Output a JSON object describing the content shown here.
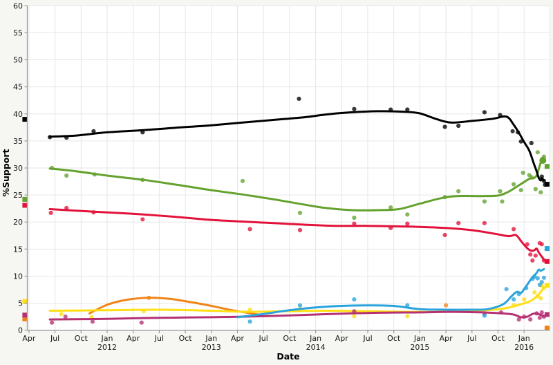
{
  "figure": {
    "background": "#f6f6f3",
    "plot_background": "#ffffff",
    "grid_color": "#e6e6e6",
    "axis_color": "#9b9b9b",
    "tick_color": "#141414"
  },
  "chart_data": {
    "type": "line",
    "title": "",
    "xlabel": "Date",
    "ylabel": "%Support",
    "xlim": [
      2011.2,
      2016.25
    ],
    "ylim": [
      0,
      60
    ],
    "grid": true,
    "legend": "none",
    "y_ticks": [
      0,
      5,
      10,
      15,
      20,
      25,
      30,
      35,
      40,
      45,
      50,
      55,
      60
    ],
    "x_ticks": [
      {
        "t": 2011.25,
        "m": "Apr"
      },
      {
        "t": 2011.5,
        "m": "Jul"
      },
      {
        "t": 2011.75,
        "m": "Oct"
      },
      {
        "t": 2012.0,
        "m": "Jan",
        "y": "2012"
      },
      {
        "t": 2012.25,
        "m": "Apr"
      },
      {
        "t": 2012.5,
        "m": "Jul"
      },
      {
        "t": 2012.75,
        "m": "Oct"
      },
      {
        "t": 2013.0,
        "m": "Jan",
        "y": "2013"
      },
      {
        "t": 2013.25,
        "m": "Apr"
      },
      {
        "t": 2013.5,
        "m": "Jul"
      },
      {
        "t": 2013.75,
        "m": "Oct"
      },
      {
        "t": 2014.0,
        "m": "Jan",
        "y": "2014"
      },
      {
        "t": 2014.25,
        "m": "Apr"
      },
      {
        "t": 2014.5,
        "m": "Jul"
      },
      {
        "t": 2014.75,
        "m": "Oct"
      },
      {
        "t": 2015.0,
        "m": "Jan",
        "y": "2015"
      },
      {
        "t": 2015.25,
        "m": "Apr"
      },
      {
        "t": 2015.5,
        "m": "Jul"
      },
      {
        "t": 2015.75,
        "m": "Oct"
      },
      {
        "t": 2016.0,
        "m": "Jan",
        "y": "2016"
      }
    ],
    "marker_x": {
      "start": 2011.21,
      "end": 2016.22
    },
    "series": [
      {
        "name": "orange",
        "color": "#f08418",
        "start_result": 2.1,
        "end_result": 0.4,
        "trend": [
          [
            2011.83,
            3.1
          ],
          [
            2012.0,
            4.7
          ],
          [
            2012.18,
            5.6
          ],
          [
            2012.4,
            6.0
          ],
          [
            2012.6,
            5.8
          ],
          [
            2012.8,
            5.2
          ],
          [
            2013.0,
            4.5
          ],
          [
            2013.2,
            3.7
          ],
          [
            2013.45,
            2.9
          ]
        ],
        "polls": [
          [
            2012.4,
            6.0
          ],
          [
            2015.25,
            4.6
          ]
        ]
      },
      {
        "name": "yellow",
        "color": "#ffdf12",
        "start_result": 5.3,
        "end_result": 8.3,
        "trend": [
          [
            2011.45,
            3.6
          ],
          [
            2012.0,
            3.7
          ],
          [
            2012.5,
            3.8
          ],
          [
            2013.0,
            3.6
          ],
          [
            2013.35,
            3.4
          ],
          [
            2013.7,
            3.5
          ],
          [
            2014.1,
            3.6
          ],
          [
            2014.5,
            3.5
          ],
          [
            2014.9,
            3.4
          ],
          [
            2015.2,
            3.4
          ],
          [
            2015.55,
            3.6
          ],
          [
            2015.8,
            4.0
          ],
          [
            2015.95,
            4.7
          ],
          [
            2016.05,
            5.3
          ],
          [
            2016.1,
            5.9
          ],
          [
            2016.14,
            6.6
          ],
          [
            2016.19,
            7.9
          ]
        ],
        "polls": [
          [
            2011.56,
            3.0
          ],
          [
            2011.85,
            2.4
          ],
          [
            2012.35,
            3.5
          ],
          [
            2013.37,
            3.8
          ],
          [
            2013.85,
            3.9
          ],
          [
            2014.37,
            2.6
          ],
          [
            2014.88,
            2.6
          ],
          [
            2015.9,
            4.6
          ],
          [
            2016.0,
            5.7
          ],
          [
            2016.1,
            7.0
          ],
          [
            2016.13,
            6.3
          ],
          [
            2016.16,
            5.9
          ],
          [
            2016.17,
            8.2
          ],
          [
            2016.19,
            7.8
          ]
        ]
      },
      {
        "name": "magenta",
        "color": "#b43173",
        "start_result": 2.8,
        "end_result": 2.9,
        "trend": [
          [
            2011.45,
            2.0
          ],
          [
            2012.0,
            2.1
          ],
          [
            2012.5,
            2.3
          ],
          [
            2013.0,
            2.4
          ],
          [
            2013.5,
            2.6
          ],
          [
            2014.0,
            2.9
          ],
          [
            2014.5,
            3.2
          ],
          [
            2015.0,
            3.3
          ],
          [
            2015.3,
            3.4
          ],
          [
            2015.6,
            3.3
          ],
          [
            2015.8,
            3.1
          ],
          [
            2015.9,
            2.9
          ],
          [
            2015.97,
            2.4
          ],
          [
            2016.03,
            2.5
          ],
          [
            2016.08,
            3.0
          ],
          [
            2016.12,
            3.1
          ],
          [
            2016.15,
            2.9
          ],
          [
            2016.19,
            2.6
          ]
        ],
        "polls": [
          [
            2011.47,
            1.4
          ],
          [
            2011.6,
            2.5
          ],
          [
            2011.86,
            1.6
          ],
          [
            2012.33,
            1.4
          ],
          [
            2014.37,
            3.5
          ],
          [
            2015.62,
            3.1
          ],
          [
            2015.78,
            3.3
          ],
          [
            2015.95,
            2.0
          ],
          [
            2016.0,
            2.5
          ],
          [
            2016.06,
            2.0
          ],
          [
            2016.12,
            3.1
          ],
          [
            2016.15,
            2.3
          ],
          [
            2016.17,
            3.3
          ],
          [
            2016.19,
            2.5
          ]
        ]
      },
      {
        "name": "lightblue",
        "color": "#29a3dc",
        "start_result": null,
        "end_result": 15.1,
        "trend": [
          [
            2013.25,
            2.4
          ],
          [
            2013.5,
            3.0
          ],
          [
            2013.75,
            3.7
          ],
          [
            2014.0,
            4.2
          ],
          [
            2014.25,
            4.5
          ],
          [
            2014.5,
            4.6
          ],
          [
            2014.75,
            4.5
          ],
          [
            2015.0,
            3.9
          ],
          [
            2015.25,
            3.8
          ],
          [
            2015.5,
            3.8
          ],
          [
            2015.65,
            3.9
          ],
          [
            2015.8,
            4.8
          ],
          [
            2015.88,
            6.3
          ],
          [
            2015.93,
            7.1
          ],
          [
            2015.97,
            6.9
          ],
          [
            2016.0,
            7.6
          ],
          [
            2016.04,
            8.7
          ],
          [
            2016.08,
            9.8
          ],
          [
            2016.12,
            10.6
          ],
          [
            2016.14,
            11.2
          ],
          [
            2016.16,
            11.0
          ],
          [
            2016.19,
            11.3
          ]
        ],
        "polls": [
          [
            2013.37,
            1.6
          ],
          [
            2013.85,
            4.6
          ],
          [
            2014.37,
            5.7
          ],
          [
            2014.88,
            4.6
          ],
          [
            2015.62,
            2.7
          ],
          [
            2015.83,
            7.6
          ],
          [
            2015.9,
            5.7
          ],
          [
            2015.95,
            6.7
          ],
          [
            2016.02,
            7.8
          ],
          [
            2016.08,
            9.5
          ],
          [
            2016.1,
            9.9
          ],
          [
            2016.13,
            9.6
          ],
          [
            2016.15,
            8.4
          ],
          [
            2016.17,
            8.9
          ],
          [
            2016.19,
            9.7
          ]
        ]
      },
      {
        "name": "red",
        "color": "#e2123a",
        "start_result": 23.1,
        "end_result": 12.7,
        "trend": [
          [
            2011.45,
            22.4
          ],
          [
            2011.7,
            22.1
          ],
          [
            2012.0,
            21.8
          ],
          [
            2012.35,
            21.4
          ],
          [
            2012.7,
            20.9
          ],
          [
            2013.0,
            20.4
          ],
          [
            2013.3,
            20.1
          ],
          [
            2013.6,
            19.8
          ],
          [
            2013.9,
            19.5
          ],
          [
            2014.2,
            19.3
          ],
          [
            2014.5,
            19.3
          ],
          [
            2014.8,
            19.2
          ],
          [
            2015.0,
            19.1
          ],
          [
            2015.25,
            18.9
          ],
          [
            2015.5,
            18.5
          ],
          [
            2015.7,
            17.9
          ],
          [
            2015.85,
            17.4
          ],
          [
            2015.92,
            17.6
          ],
          [
            2015.97,
            16.5
          ],
          [
            2016.0,
            15.8
          ],
          [
            2016.04,
            15.0
          ],
          [
            2016.07,
            14.7
          ],
          [
            2016.1,
            14.8
          ],
          [
            2016.12,
            15.1
          ],
          [
            2016.14,
            14.4
          ],
          [
            2016.17,
            13.6
          ],
          [
            2016.19,
            13.1
          ]
        ],
        "polls": [
          [
            2011.46,
            21.7
          ],
          [
            2011.61,
            22.6
          ],
          [
            2011.87,
            21.8
          ],
          [
            2012.34,
            20.5
          ],
          [
            2013.37,
            18.7
          ],
          [
            2013.85,
            18.5
          ],
          [
            2014.37,
            19.7
          ],
          [
            2014.72,
            18.9
          ],
          [
            2014.88,
            19.7
          ],
          [
            2015.24,
            17.6
          ],
          [
            2015.37,
            19.8
          ],
          [
            2015.62,
            19.8
          ],
          [
            2015.9,
            18.7
          ],
          [
            2016.03,
            15.9
          ],
          [
            2016.06,
            14.0
          ],
          [
            2016.08,
            12.9
          ],
          [
            2016.11,
            13.8
          ],
          [
            2016.15,
            16.1
          ],
          [
            2016.17,
            15.9
          ],
          [
            2016.19,
            12.9
          ]
        ]
      },
      {
        "name": "green",
        "color": "#64a12d",
        "start_result": 24.2,
        "end_result": 30.3,
        "end_dot": [
          2016.18,
          31.4
        ],
        "trend": [
          [
            2011.45,
            29.9
          ],
          [
            2011.7,
            29.4
          ],
          [
            2012.0,
            28.6
          ],
          [
            2012.35,
            27.8
          ],
          [
            2012.7,
            26.8
          ],
          [
            2013.0,
            25.9
          ],
          [
            2013.3,
            25.1
          ],
          [
            2013.6,
            24.2
          ],
          [
            2013.9,
            23.2
          ],
          [
            2014.1,
            22.6
          ],
          [
            2014.35,
            22.2
          ],
          [
            2014.6,
            22.2
          ],
          [
            2014.8,
            22.4
          ],
          [
            2015.0,
            23.4
          ],
          [
            2015.2,
            24.4
          ],
          [
            2015.35,
            24.8
          ],
          [
            2015.6,
            24.8
          ],
          [
            2015.75,
            24.9
          ],
          [
            2015.85,
            25.6
          ],
          [
            2015.95,
            26.8
          ],
          [
            2016.0,
            27.4
          ],
          [
            2016.05,
            28.0
          ],
          [
            2016.09,
            28.1
          ],
          [
            2016.12,
            28.6
          ],
          [
            2016.14,
            29.8
          ],
          [
            2016.16,
            31.0
          ],
          [
            2016.18,
            31.4
          ]
        ],
        "polls": [
          [
            2011.47,
            30.0
          ],
          [
            2011.61,
            28.6
          ],
          [
            2011.88,
            28.8
          ],
          [
            2012.34,
            27.8
          ],
          [
            2013.3,
            27.6
          ],
          [
            2013.85,
            21.7
          ],
          [
            2014.37,
            20.8
          ],
          [
            2014.72,
            22.7
          ],
          [
            2014.88,
            21.4
          ],
          [
            2015.24,
            24.6
          ],
          [
            2015.37,
            25.7
          ],
          [
            2015.62,
            23.8
          ],
          [
            2015.77,
            25.7
          ],
          [
            2015.79,
            23.8
          ],
          [
            2015.9,
            27.0
          ],
          [
            2015.97,
            25.9
          ],
          [
            2015.99,
            29.1
          ],
          [
            2016.05,
            28.7
          ],
          [
            2016.07,
            28.3
          ],
          [
            2016.11,
            26.1
          ],
          [
            2016.13,
            32.9
          ],
          [
            2016.16,
            25.5
          ],
          [
            2016.19,
            32.1
          ]
        ]
      },
      {
        "name": "black",
        "color": "#000000",
        "start_result": 39.0,
        "end_result": 27.0,
        "trend": [
          [
            2011.45,
            35.8
          ],
          [
            2011.7,
            36.0
          ],
          [
            2012.0,
            36.6
          ],
          [
            2012.35,
            37.0
          ],
          [
            2012.7,
            37.5
          ],
          [
            2013.0,
            37.9
          ],
          [
            2013.3,
            38.4
          ],
          [
            2013.6,
            38.9
          ],
          [
            2013.9,
            39.4
          ],
          [
            2014.1,
            39.9
          ],
          [
            2014.35,
            40.3
          ],
          [
            2014.6,
            40.5
          ],
          [
            2014.85,
            40.4
          ],
          [
            2015.0,
            40.1
          ],
          [
            2015.15,
            39.1
          ],
          [
            2015.3,
            38.4
          ],
          [
            2015.5,
            38.7
          ],
          [
            2015.7,
            39.1
          ],
          [
            2015.83,
            39.5
          ],
          [
            2015.9,
            38.0
          ],
          [
            2015.95,
            36.5
          ],
          [
            2016.0,
            34.8
          ],
          [
            2016.05,
            33.2
          ],
          [
            2016.09,
            31.0
          ],
          [
            2016.12,
            29.4
          ],
          [
            2016.14,
            28.2
          ],
          [
            2016.16,
            27.7
          ],
          [
            2016.17,
            28.1
          ],
          [
            2016.19,
            27.7
          ]
        ],
        "polls": [
          [
            2011.45,
            35.7
          ],
          [
            2011.61,
            35.6
          ],
          [
            2011.87,
            36.8
          ],
          [
            2012.34,
            36.6
          ],
          [
            2013.84,
            42.8
          ],
          [
            2014.37,
            40.9
          ],
          [
            2014.72,
            40.8
          ],
          [
            2014.88,
            40.8
          ],
          [
            2015.24,
            37.6
          ],
          [
            2015.37,
            37.8
          ],
          [
            2015.62,
            40.3
          ],
          [
            2015.77,
            39.8
          ],
          [
            2015.89,
            36.8
          ],
          [
            2015.94,
            36.6
          ],
          [
            2015.97,
            34.9
          ],
          [
            2016.07,
            34.6
          ],
          [
            2016.17,
            28.4
          ],
          [
            2016.19,
            27.6
          ],
          [
            2016.2,
            26.9
          ]
        ]
      }
    ]
  }
}
